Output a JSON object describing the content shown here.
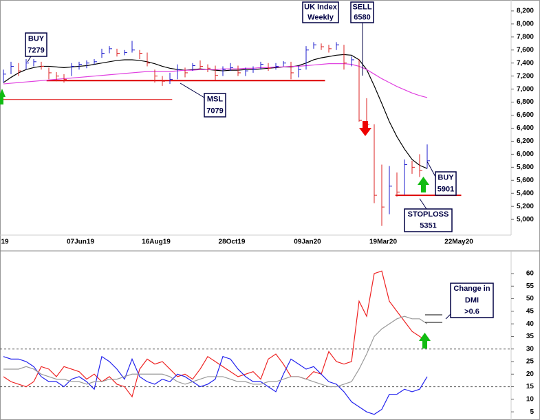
{
  "chart_data": [
    {
      "type": "ohlc",
      "categories": [
        "19",
        null,
        null,
        null,
        null,
        null,
        null,
        null,
        null,
        null,
        "07Jun19",
        null,
        null,
        null,
        null,
        null,
        null,
        null,
        null,
        null,
        "16Aug19",
        null,
        null,
        null,
        null,
        null,
        null,
        null,
        null,
        null,
        "28Oct19",
        null,
        null,
        null,
        null,
        null,
        null,
        null,
        null,
        null,
        "09Jan20",
        null,
        null,
        null,
        null,
        null,
        null,
        null,
        null,
        null,
        "19Mar20",
        null,
        null,
        null,
        null,
        null,
        null,
        null,
        null,
        null,
        "22May20"
      ],
      "high": [
        7300,
        7420,
        7400,
        7460,
        7460,
        7420,
        7330,
        7260,
        7230,
        7400,
        7420,
        7440,
        7460,
        7620,
        7660,
        7620,
        7600,
        7740,
        7600,
        7560,
        7300,
        7200,
        7250,
        7380,
        7330,
        7400,
        7440,
        7380,
        7360,
        7350,
        7400,
        7360,
        7330,
        7350,
        7420,
        7400,
        7400,
        7430,
        7420,
        7360,
        7660,
        7720,
        7700,
        7680,
        7720,
        7680,
        7500,
        7460,
        6860,
        6460,
        5840,
        5820,
        5720,
        5920,
        5900,
        6000,
        6150,
        null,
        null,
        null,
        null
      ],
      "low": [
        7100,
        7230,
        7200,
        7300,
        7350,
        7300,
        7150,
        7120,
        7100,
        7200,
        7300,
        7320,
        7380,
        7480,
        7550,
        7500,
        7520,
        7560,
        7460,
        7350,
        7100,
        7050,
        7080,
        7150,
        7180,
        7280,
        7300,
        7260,
        7140,
        7200,
        7280,
        7200,
        7200,
        7250,
        7300,
        7280,
        7300,
        7350,
        7150,
        7180,
        7300,
        7620,
        7600,
        7560,
        7600,
        7300,
        7350,
        6500,
        6400,
        5250,
        4900,
        5080,
        5350,
        5380,
        5700,
        5650,
        5780,
        null,
        null,
        null,
        null
      ],
      "close": [
        7230,
        7350,
        7280,
        7400,
        7420,
        7350,
        7250,
        7200,
        7150,
        7350,
        7380,
        7400,
        7420,
        7550,
        7620,
        7550,
        7560,
        7600,
        7550,
        7400,
        7200,
        7120,
        7150,
        7300,
        7250,
        7360,
        7350,
        7320,
        7210,
        7300,
        7330,
        7250,
        7280,
        7300,
        7380,
        7320,
        7350,
        7400,
        7250,
        7300,
        7600,
        7680,
        7650,
        7620,
        7680,
        7400,
        7450,
        6520,
        6460,
        5370,
        5190,
        5510,
        5420,
        5840,
        5800,
        5750,
        5900,
        null,
        null,
        null,
        null
      ],
      "up_color": "#1a1acc",
      "down_color": "#dd2222",
      "series": [
        {
          "color": "#000000",
          "values": [
            7100,
            7180,
            7250,
            7300,
            7330,
            7350,
            7350,
            7340,
            7330,
            7340,
            7350,
            7360,
            7380,
            7400,
            7420,
            7440,
            7450,
            7450,
            7440,
            7420,
            7390,
            7350,
            7320,
            7300,
            7290,
            7300,
            7310,
            7300,
            7290,
            7280,
            7290,
            7290,
            7300,
            7300,
            7310,
            7320,
            7330,
            7340,
            7340,
            7360,
            7400,
            7450,
            7480,
            7500,
            7520,
            7530,
            7520,
            7450,
            7300,
            7050,
            6780,
            6500,
            6270,
            6080,
            5920,
            5830,
            5780,
            null,
            null,
            null,
            null
          ]
        },
        {
          "color": "#e040e0",
          "values": [
            7080,
            7090,
            7100,
            7110,
            7120,
            7130,
            7140,
            7150,
            7160,
            7170,
            7180,
            7190,
            7200,
            7210,
            7220,
            7230,
            7240,
            7250,
            7260,
            7270,
            7270,
            7270,
            7270,
            7280,
            7290,
            7290,
            7300,
            7300,
            7300,
            7310,
            7310,
            7310,
            7320,
            7320,
            7330,
            7330,
            7340,
            7340,
            7350,
            7350,
            7360,
            7370,
            7380,
            7390,
            7390,
            7390,
            7380,
            7350,
            7300,
            7230,
            7160,
            7100,
            7040,
            6990,
            6940,
            6900,
            6870,
            null,
            null,
            null,
            null
          ]
        }
      ],
      "levels": [
        {
          "value": 7130,
          "from": 5.7,
          "to": 42.5,
          "color": "#dd0000"
        },
        {
          "value": 6840,
          "from": 0,
          "to": 22.3,
          "color": "#dd0000"
        },
        {
          "value": 5370,
          "from": 51.8,
          "to": 60.5,
          "color": "#dd0000"
        }
      ],
      "ylim": [
        4780,
        8315
      ],
      "yticks": [
        {
          "value": 5000,
          "label": "5,000"
        },
        {
          "value": 5200,
          "label": "5,200"
        },
        {
          "value": 5400,
          "label": "5,400"
        },
        {
          "value": 5600,
          "label": "5,600"
        },
        {
          "value": 5800,
          "label": "5,800"
        },
        {
          "value": 6000,
          "label": "6,000"
        },
        {
          "value": 6200,
          "label": "6,200"
        },
        {
          "value": 6400,
          "label": "6,400"
        },
        {
          "value": 6600,
          "label": "6,600"
        },
        {
          "value": 6800,
          "label": "6,800"
        },
        {
          "value": 7000,
          "label": "7,000"
        },
        {
          "value": 7200,
          "label": "7,200"
        },
        {
          "value": 7400,
          "label": "7,400"
        },
        {
          "value": 7600,
          "label": "7,600"
        },
        {
          "value": 7800,
          "label": "7,800"
        },
        {
          "value": 8000,
          "label": "8,000"
        },
        {
          "value": 8200,
          "label": "8,200"
        }
      ],
      "annotations": [
        {
          "lines": [
            "BUY",
            "7279"
          ]
        },
        {
          "lines": [
            "UK Index",
            "Weekly"
          ]
        },
        {
          "lines": [
            "SELL",
            "6580"
          ]
        },
        {
          "lines": [
            "MSL",
            "7079"
          ]
        },
        {
          "lines": [
            "BUY",
            "5901"
          ]
        },
        {
          "lines": [
            "STOPLOSS",
            "5351"
          ]
        }
      ]
    },
    {
      "type": "line",
      "series": [
        {
          "color": "#ee2222",
          "values": [
            19,
            17,
            16,
            15,
            17,
            23,
            22,
            19,
            23,
            22,
            21,
            18,
            20,
            17,
            19,
            16,
            15,
            11,
            22,
            26,
            24,
            25,
            22,
            19,
            20,
            18,
            22,
            27,
            25,
            23,
            21,
            19,
            20,
            21,
            18,
            26,
            28,
            24,
            19,
            19,
            18,
            21,
            20,
            29,
            25,
            24,
            25,
            49,
            43,
            60,
            61,
            49,
            45,
            41,
            37,
            35,
            33,
            null,
            null,
            null,
            null
          ]
        },
        {
          "color": "#2222ee",
          "values": [
            27,
            26,
            26,
            25,
            23,
            19,
            17,
            17,
            15,
            18,
            19,
            17,
            14,
            27,
            25,
            22,
            18,
            26,
            19,
            17,
            16,
            18,
            17,
            20,
            19,
            17,
            15,
            16,
            18,
            27,
            26,
            22,
            19,
            17,
            17,
            15,
            13,
            20,
            26,
            24,
            22,
            23,
            20,
            17,
            16,
            13,
            9,
            7,
            5,
            4,
            6,
            12,
            12,
            14,
            13,
            14,
            19,
            null,
            null,
            null,
            null
          ]
        },
        {
          "color": "#999999",
          "values": [
            22,
            22,
            22,
            23,
            22,
            20,
            19,
            18,
            18,
            17,
            17,
            16,
            17,
            17,
            18,
            18,
            19,
            20,
            20,
            20,
            20,
            20,
            19,
            17,
            16,
            17,
            18,
            19,
            19,
            19,
            18,
            17,
            17,
            16,
            16,
            17,
            17,
            18,
            19,
            19,
            18,
            17,
            16,
            15,
            15,
            16,
            17,
            22,
            28,
            35,
            38,
            40,
            42,
            43,
            42,
            42,
            40,
            null,
            null,
            null,
            null
          ]
        }
      ],
      "hlines": [
        30,
        15
      ],
      "ylim": [
        3.4,
        68.2
      ],
      "yticks": [
        5,
        10,
        15,
        20,
        25,
        30,
        35,
        40,
        45,
        50,
        55,
        60
      ],
      "annotations": [
        {
          "lines": [
            "Change in",
            "DMI",
            ">0.6"
          ]
        }
      ]
    }
  ]
}
